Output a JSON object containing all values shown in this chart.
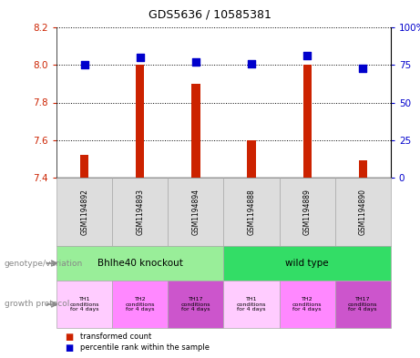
{
  "title": "GDS5636 / 10585381",
  "samples": [
    "GSM1194892",
    "GSM1194893",
    "GSM1194894",
    "GSM1194888",
    "GSM1194889",
    "GSM1194890"
  ],
  "transformed_counts": [
    7.52,
    8.0,
    7.9,
    7.6,
    8.0,
    7.49
  ],
  "percentile_ranks": [
    75,
    80,
    77,
    76,
    81,
    73
  ],
  "ylim_left": [
    7.4,
    8.2
  ],
  "ylim_right": [
    0,
    100
  ],
  "yticks_left": [
    7.4,
    7.6,
    7.8,
    8.0,
    8.2
  ],
  "yticks_right": [
    0,
    25,
    50,
    75,
    100
  ],
  "bar_color": "#cc2200",
  "dot_color": "#0000cc",
  "genotype_groups": [
    {
      "label": "Bhlhe40 knockout",
      "start": 0,
      "end": 3,
      "color": "#99ee99"
    },
    {
      "label": "wild type",
      "start": 3,
      "end": 6,
      "color": "#33dd66"
    }
  ],
  "growth_protocol_colors": [
    "#ffccff",
    "#ff88ff",
    "#cc55cc",
    "#ffccff",
    "#ff88ff",
    "#cc55cc"
  ],
  "growth_protocol_labels": [
    "TH1\nconditions\nfor 4 days",
    "TH2\nconditions\nfor 4 days",
    "TH17\nconditions\nfor 4 days",
    "TH1\nconditions\nfor 4 days",
    "TH2\nconditions\nfor 4 days",
    "TH17\nconditions\nfor 4 days"
  ],
  "left_label_color": "#cc2200",
  "right_label_color": "#0000cc",
  "background_color": "#ffffff",
  "bar_width": 0.15,
  "dot_size": 28
}
